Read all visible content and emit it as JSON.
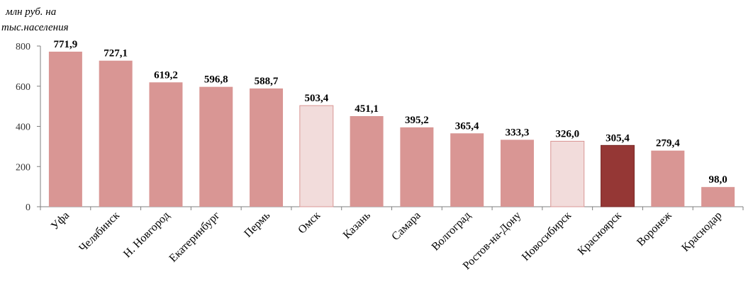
{
  "chart_data": {
    "type": "bar",
    "ylabel_lines": [
      "млн руб. на",
      "тыс.населения"
    ],
    "categories": [
      "Уфа",
      "Челябинск",
      "Н. Новгород",
      "Екатеринбург",
      "Пермь",
      "Омск",
      "Казань",
      "Самара",
      "Волгоград",
      "Ростов-на-Дону",
      "Новосибирск",
      "Красноярск",
      "Воронеж",
      "Краснодар"
    ],
    "values": [
      771.9,
      727.1,
      619.2,
      596.8,
      588.7,
      503.4,
      451.1,
      395.2,
      365.4,
      333.3,
      326.0,
      305.4,
      279.4,
      98.0
    ],
    "value_labels": [
      "771,9",
      "727,1",
      "619,2",
      "596,8",
      "588,7",
      "503,4",
      "451,1",
      "395,2",
      "365,4",
      "333,3",
      "326,0",
      "305,4",
      "279,4",
      "98,0"
    ],
    "yticks": [
      0,
      200,
      400,
      600,
      800
    ],
    "ylim": [
      0,
      800
    ],
    "grid": false,
    "legend": "none",
    "bar_styles": [
      "normal",
      "normal",
      "normal",
      "normal",
      "normal",
      "light",
      "normal",
      "normal",
      "normal",
      "normal",
      "light",
      "highlight",
      "normal",
      "normal"
    ],
    "colors": {
      "normal": "#d99694",
      "light": "#f2dcdb",
      "light_stroke": "#d99694",
      "highlight": "#953735",
      "axis": "#7f7f7f"
    }
  }
}
